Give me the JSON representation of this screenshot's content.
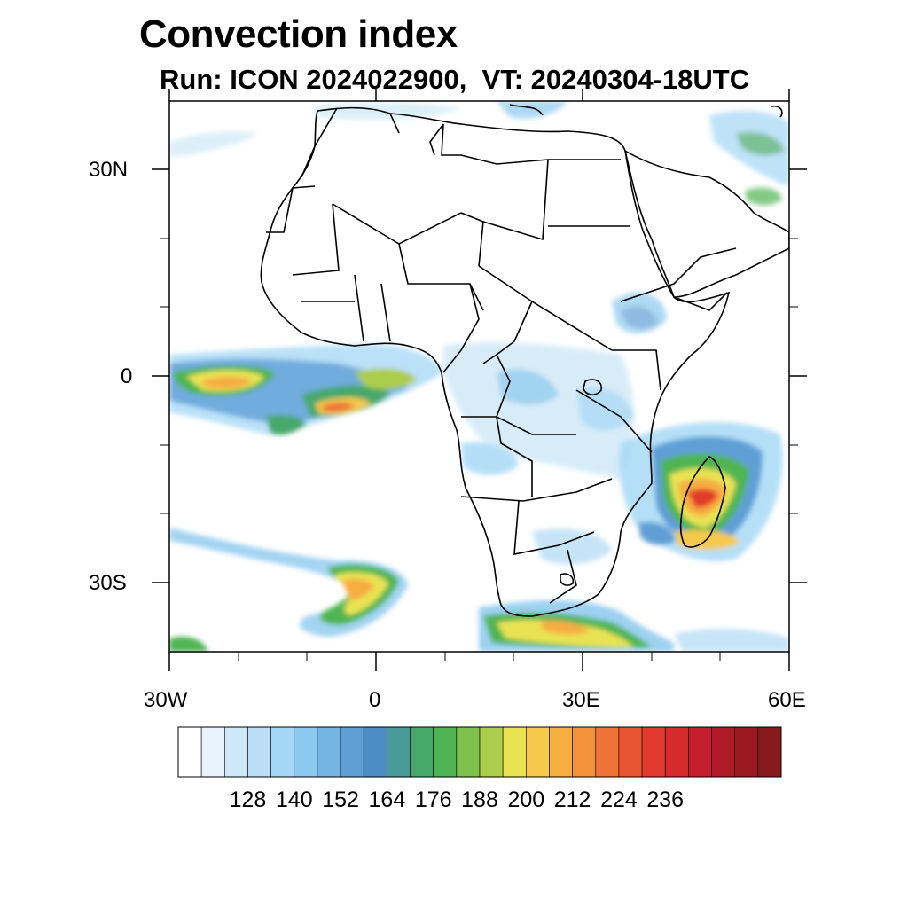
{
  "title": "Convection index",
  "subtitle": "Run: ICON 2024022900,  VT: 20240304-18UTC",
  "axes": {
    "x_ticks": [
      "30W",
      "0",
      "30E",
      "60E"
    ],
    "y_ticks": [
      "30N",
      "0",
      "30S"
    ]
  },
  "colorbar": {
    "labels": [
      "128",
      "140",
      "152",
      "164",
      "176",
      "188",
      "200",
      "212",
      "224",
      "236"
    ],
    "colors": [
      "#ffffff",
      "#e8f4fb",
      "#cfe8f7",
      "#b9def5",
      "#a3d7f5",
      "#8cc9ee",
      "#76b4e3",
      "#5f9fd6",
      "#4d8dc6",
      "#4a9a9a",
      "#47a86c",
      "#4fb552",
      "#7fc14e",
      "#abcd4c",
      "#e9e353",
      "#f5c94c",
      "#f6ad42",
      "#f3923b",
      "#ee7136",
      "#e85530",
      "#e23a2c",
      "#d52a2c",
      "#c41e2c",
      "#b01a28",
      "#9b1a22",
      "#861a1c"
    ]
  }
}
